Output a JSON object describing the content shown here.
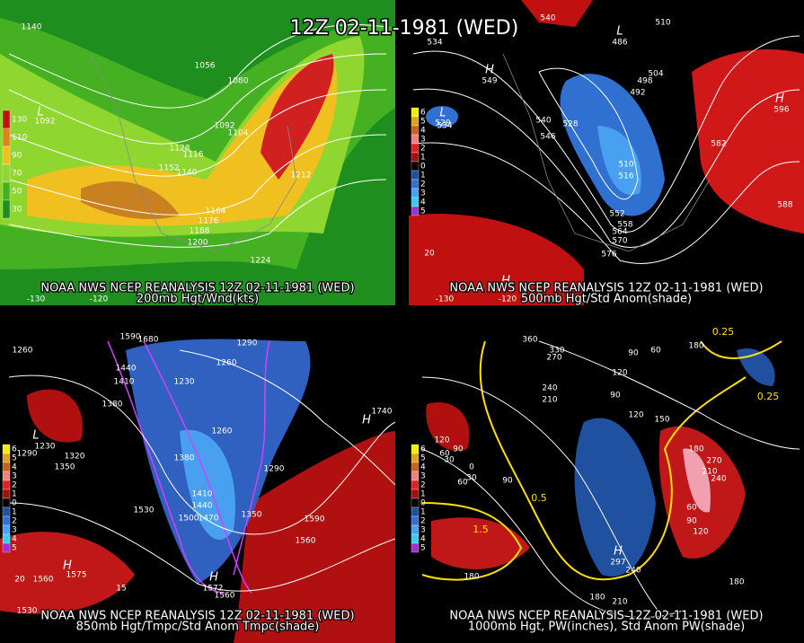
{
  "title": "12Z 02-11-1981 (WED)",
  "panels": [
    {
      "caption": [
        "NOAA NWS NCEP REANALYSIS 12Z 02-11-1981 (WED)",
        "200mb Hgt/Wnd(kts)"
      ],
      "legend": [
        "130",
        "110",
        "90",
        "70",
        "50",
        "30"
      ],
      "axis": [
        "-130",
        "-120"
      ],
      "labels": [
        "1140",
        "L",
        "1092",
        "1056",
        "1080",
        "1092",
        "1104",
        "1128",
        "1116",
        "1152",
        "1140",
        "1164",
        "1176",
        "1188",
        "1200",
        "1212",
        "1224"
      ]
    },
    {
      "caption": [
        "NOAA NWS NCEP REANALYSIS 12Z 02-11-1981 (WED)",
        "500mb Hgt/Std Anom(shade)"
      ],
      "legend": [
        "6",
        "5",
        "4",
        "3",
        "2",
        "1",
        "0",
        "1",
        "2",
        "3",
        "4",
        "5"
      ],
      "axis": [
        "-130",
        "-120"
      ],
      "labels": [
        "540",
        "510",
        "534",
        "H",
        "549",
        "L",
        "486",
        "504",
        "498",
        "492",
        "L",
        "529",
        "534",
        "540",
        "528",
        "546",
        "582",
        "510",
        "516",
        "552",
        "558",
        "564",
        "570",
        "576",
        "588",
        "H",
        "596",
        "20",
        "H"
      ]
    },
    {
      "caption": [
        "NOAA NWS NCEP REANALYSIS 12Z 02-11-1981 (WED)",
        "850mb Hgt/Tmpc/Std Anom Tmpc(shade)"
      ],
      "legend": [
        "6",
        "5",
        "4",
        "3",
        "2",
        "1",
        "0",
        "1",
        "2",
        "3",
        "4",
        "5"
      ],
      "axis": [],
      "labels": [
        "1260",
        "1590",
        "1680",
        "1290",
        "1440",
        "1410",
        "1230",
        "1260",
        "1380",
        "H",
        "1740",
        "1260",
        "L",
        "1230",
        "1290",
        "1320",
        "1350",
        "1380",
        "1290",
        "1410",
        "1440",
        "1530",
        "1500",
        "1470",
        "1350",
        "1590",
        "1560",
        "H",
        "1560",
        "1575",
        "H",
        "1572",
        "1560",
        "15",
        "1530",
        "20"
      ]
    },
    {
      "caption": [
        "NOAA NWS NCEP REANALYSIS 12Z 02-11-1981 (WED)",
        "1000mb Hgt, PW(inches), Std Anom PW(shade)"
      ],
      "legend": [
        "6",
        "5",
        "4",
        "3",
        "2",
        "1",
        "0",
        "1",
        "2",
        "3",
        "4",
        "5"
      ],
      "axis": [],
      "labels": [
        "360",
        "330",
        "270",
        "60",
        "90",
        "120",
        "90",
        "240",
        "210",
        "180",
        "0.25",
        "0.25",
        "150",
        "120",
        "180",
        "270",
        "210",
        "240",
        "120",
        "90",
        "60",
        "30",
        "0",
        "30",
        "60",
        "90",
        "0.5",
        "1.5",
        "60",
        "90",
        "120",
        "H",
        "180",
        "297",
        "240",
        "180",
        "210",
        "180"
      ]
    }
  ]
}
